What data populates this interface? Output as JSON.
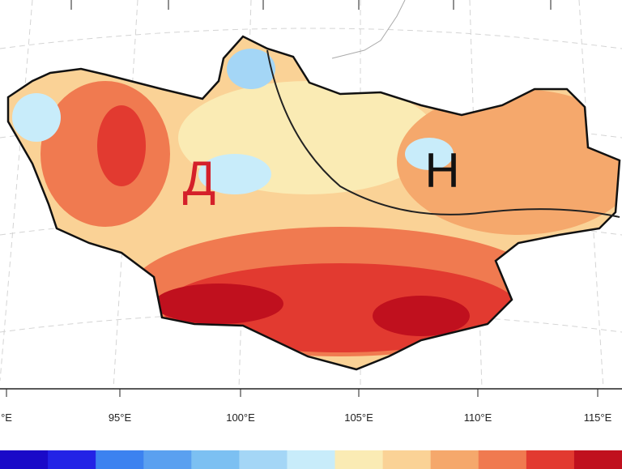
{
  "labels": {
    "west": "Д",
    "east": "Н"
  },
  "longitude_labels": [
    "°E",
    "95°E",
    "100°E",
    "105°E",
    "110°E",
    "115°E"
  ],
  "colorbar": {
    "colors": [
      "#1a0ac8",
      "#2323e6",
      "#3c82f0",
      "#5aa0f0",
      "#7cc0f2",
      "#a4d6f6",
      "#c8ecfa",
      "#faebb4",
      "#fad296",
      "#f5a86c",
      "#f07a50",
      "#e23a30",
      "#c0101e"
    ]
  }
}
